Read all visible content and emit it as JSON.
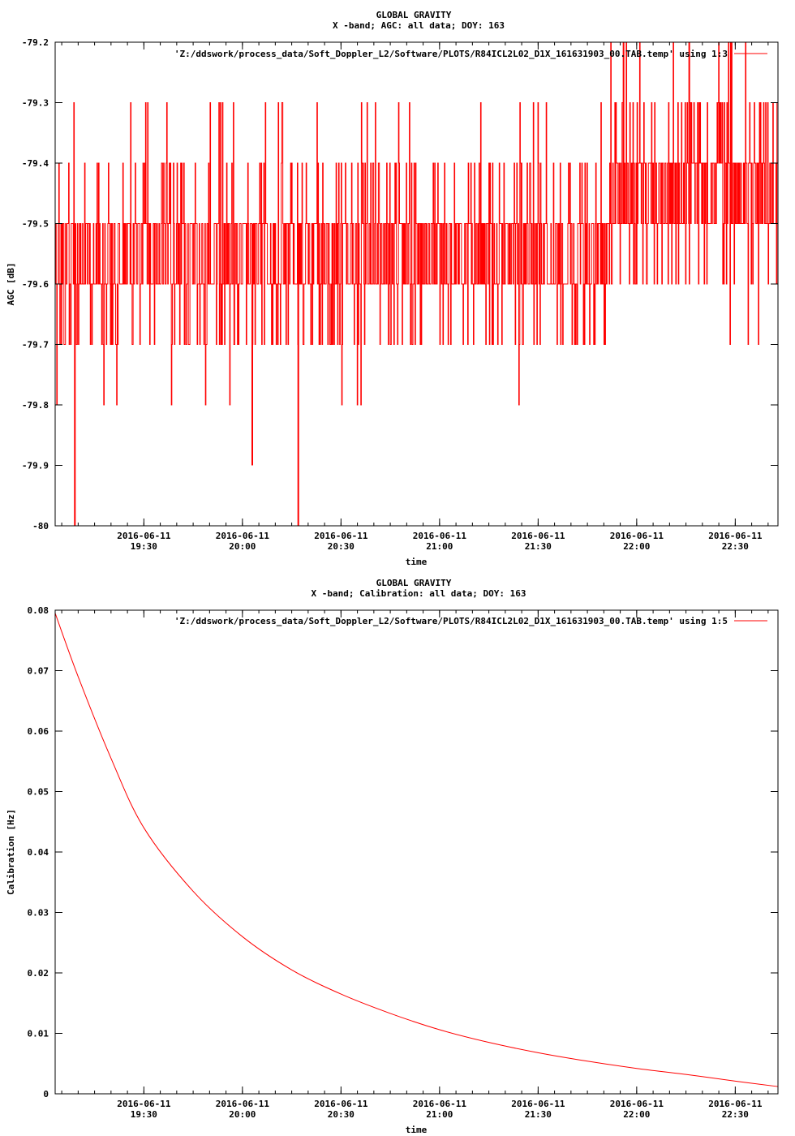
{
  "colors": {
    "series": "#ff0000",
    "axis": "#000000",
    "background": "#ffffff"
  },
  "x_ticks": [
    {
      "value": "2016-06-11T19:30:00",
      "date": "2016-06-11",
      "time": "19:30"
    },
    {
      "value": "2016-06-11T20:00:00",
      "date": "2016-06-11",
      "time": "20:00"
    },
    {
      "value": "2016-06-11T20:30:00",
      "date": "2016-06-11",
      "time": "20:30"
    },
    {
      "value": "2016-06-11T21:00:00",
      "date": "2016-06-11",
      "time": "21:00"
    },
    {
      "value": "2016-06-11T21:30:00",
      "date": "2016-06-11",
      "time": "21:30"
    },
    {
      "value": "2016-06-11T22:00:00",
      "date": "2016-06-11",
      "time": "22:00"
    },
    {
      "value": "2016-06-11T22:30:00",
      "date": "2016-06-11",
      "time": "22:30"
    }
  ],
  "chart_data": [
    {
      "type": "line",
      "title": "GLOBAL GRAVITY",
      "subtitle": "X -band; AGC: all data; DOY: 163",
      "xlabel": "time",
      "ylabel": "AGC [dB]",
      "xlim": [
        "2016-06-11T19:03:00",
        "2016-06-11T22:43:00"
      ],
      "ylim": [
        -80,
        -79.2
      ],
      "yticks": [
        "-79.2",
        "-79.3",
        "-79.4",
        "-79.5",
        "-79.6",
        "-79.7",
        "-79.8",
        "-79.9",
        "-80"
      ],
      "ytick_values": [
        -79.2,
        -79.3,
        -79.4,
        -79.5,
        -79.6,
        -79.7,
        -79.8,
        -79.9,
        -80
      ],
      "grid": false,
      "legend_position": "top-right",
      "series": [
        {
          "name": "'Z:/ddswork/process_data/Soft_Doppler_L2/Software/PLOTS/R84ICL2L02_D1X_161631903_00.TAB.temp' using 1:3",
          "style": "noisy step signal between -79.8 and -79.3 dB with occasional spikes",
          "x": [
            "2016-06-11T19:03:00",
            "2016-06-11T19:09:00",
            "2016-06-11T19:20:00",
            "2016-06-11T19:30:00",
            "2016-06-11T19:45:00",
            "2016-06-11T20:00:00",
            "2016-06-11T20:03:00",
            "2016-06-11T20:17:00",
            "2016-06-11T20:30:00",
            "2016-06-11T20:45:00",
            "2016-06-11T21:00:00",
            "2016-06-11T21:15:00",
            "2016-06-11T21:30:00",
            "2016-06-11T21:45:00",
            "2016-06-11T21:56:00",
            "2016-06-11T22:00:00",
            "2016-06-11T22:16:00",
            "2016-06-11T22:30:00",
            "2016-06-11T22:43:00"
          ],
          "y": [
            -79.6,
            -80.0,
            -79.3,
            -79.5,
            -79.8,
            -79.6,
            -79.9,
            -80.0,
            -79.5,
            -79.4,
            -79.5,
            -79.6,
            -79.5,
            -79.3,
            -79.2,
            -79.4,
            -79.2,
            -79.5,
            -79.6
          ]
        }
      ]
    },
    {
      "type": "line",
      "title": "GLOBAL GRAVITY",
      "subtitle": "X -band; Calibration: all data; DOY: 163",
      "xlabel": "time",
      "ylabel": "Calibration [Hz]",
      "xlim": [
        "2016-06-11T19:03:00",
        "2016-06-11T22:43:00"
      ],
      "ylim": [
        0,
        0.08
      ],
      "yticks": [
        "0.08",
        "0.07",
        "0.06",
        "0.05",
        "0.04",
        "0.03",
        "0.02",
        "0.01",
        "0"
      ],
      "ytick_values": [
        0.08,
        0.07,
        0.06,
        0.05,
        0.04,
        0.03,
        0.02,
        0.01,
        0
      ],
      "grid": false,
      "legend_position": "top-right",
      "series": [
        {
          "name": "'Z:/ddswork/process_data/Soft_Doppler_L2/Software/PLOTS/R84ICL2L02_D1X_161631903_00.TAB.temp' using 1:5",
          "x": [
            "2016-06-11T19:03:00",
            "2016-06-11T19:10:00",
            "2016-06-11T19:20:00",
            "2016-06-11T19:30:00",
            "2016-06-11T19:45:00",
            "2016-06-11T20:00:00",
            "2016-06-11T20:15:00",
            "2016-06-11T20:30:00",
            "2016-06-11T20:45:00",
            "2016-06-11T21:00:00",
            "2016-06-11T21:15:00",
            "2016-06-11T21:30:00",
            "2016-06-11T21:45:00",
            "2016-06-11T22:00:00",
            "2016-06-11T22:15:00",
            "2016-06-11T22:30:00",
            "2016-06-11T22:43:00"
          ],
          "y": [
            0.0795,
            0.069,
            0.0555,
            0.044,
            0.0335,
            0.026,
            0.0205,
            0.0165,
            0.0133,
            0.0106,
            0.0085,
            0.0068,
            0.0054,
            0.0042,
            0.0032,
            0.0021,
            0.0012
          ]
        }
      ]
    }
  ]
}
